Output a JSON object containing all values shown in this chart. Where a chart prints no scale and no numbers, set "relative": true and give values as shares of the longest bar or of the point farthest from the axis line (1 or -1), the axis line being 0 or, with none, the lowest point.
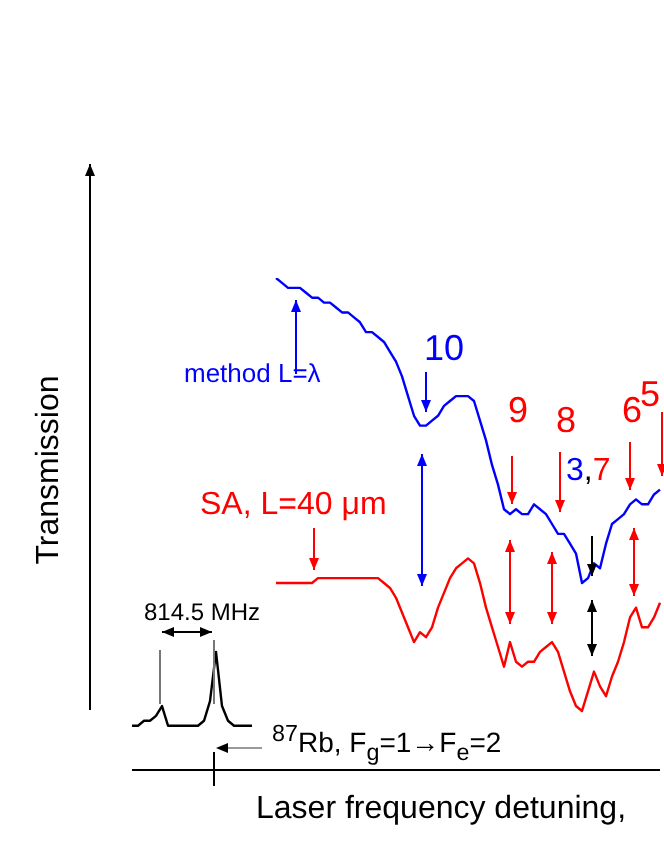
{
  "chart_data": {
    "type": "line",
    "relative": true,
    "xlabel": "Laser frequency detuning,",
    "ylabel": "Transmission",
    "legend": false,
    "grid": false,
    "categories": [
      null,
      null,
      null,
      null,
      null,
      null,
      null,
      null,
      null,
      null,
      null,
      null,
      null,
      null,
      null,
      null,
      null,
      null,
      null,
      null,
      null,
      null,
      null,
      null,
      null,
      null,
      null,
      null,
      null,
      null,
      null,
      null,
      null,
      null,
      null,
      null,
      null,
      null,
      null,
      null,
      null,
      null,
      null,
      null,
      null,
      null,
      null,
      null,
      null,
      null,
      null,
      null,
      null,
      null,
      null,
      null,
      null,
      null,
      null,
      null,
      null,
      null,
      null,
      null,
      null,
      null,
      null,
      null,
      null,
      null,
      null,
      null,
      null,
      null,
      null,
      null,
      null,
      null,
      null,
      null,
      null,
      null,
      null,
      null,
      null,
      null,
      null,
      null,
      null
    ],
    "series": [
      {
        "color": "#0000ff",
        "values": [
          null,
          null,
          null,
          null,
          null,
          null,
          null,
          null,
          null,
          null,
          null,
          null,
          null,
          null,
          null,
          null,
          null,
          null,
          null,
          null,
          null,
          null,
          null,
          null,
          1.0,
          0.99,
          0.98,
          0.98,
          0.98,
          0.97,
          0.96,
          0.96,
          0.95,
          0.95,
          0.94,
          0.93,
          0.93,
          0.92,
          0.91,
          0.89,
          0.89,
          0.88,
          0.87,
          0.85,
          0.83,
          0.8,
          0.76,
          0.72,
          0.7,
          0.7,
          0.71,
          0.72,
          0.74,
          0.75,
          0.76,
          0.76,
          0.76,
          0.75,
          0.71,
          0.67,
          0.62,
          0.58,
          0.53,
          0.52,
          0.53,
          0.52,
          0.52,
          0.54,
          0.53,
          0.52,
          0.5,
          0.48,
          0.48,
          0.46,
          0.44,
          0.38,
          0.39,
          0.42,
          0.41,
          0.46,
          0.5,
          0.51,
          0.52,
          0.54,
          0.55,
          0.54,
          0.54,
          0.56,
          0.57
        ]
      },
      {
        "color": "#ff0000",
        "values": [
          null,
          null,
          null,
          null,
          null,
          null,
          null,
          null,
          null,
          null,
          null,
          null,
          null,
          null,
          null,
          null,
          null,
          null,
          null,
          null,
          null,
          null,
          null,
          null,
          0.38,
          0.38,
          0.38,
          0.38,
          0.38,
          0.38,
          0.38,
          0.39,
          0.39,
          0.39,
          0.39,
          0.39,
          0.39,
          0.39,
          0.39,
          0.39,
          0.39,
          0.39,
          0.38,
          0.37,
          0.35,
          0.32,
          0.29,
          0.26,
          0.28,
          0.27,
          0.29,
          0.33,
          0.36,
          0.39,
          0.41,
          0.42,
          0.43,
          0.42,
          0.38,
          0.33,
          0.29,
          0.25,
          0.21,
          0.26,
          0.22,
          0.21,
          0.22,
          0.22,
          0.24,
          0.25,
          0.26,
          0.24,
          0.2,
          0.16,
          0.13,
          0.12,
          0.16,
          0.2,
          0.17,
          0.15,
          0.19,
          0.22,
          0.26,
          0.31,
          0.33,
          0.29,
          0.29,
          0.31,
          0.34
        ]
      },
      {
        "color": "#000000",
        "values": [
          0.09,
          0.09,
          0.1,
          0.1,
          0.11,
          0.13,
          0.09,
          0.09,
          0.09,
          0.09,
          0.09,
          0.09,
          0.1,
          0.14,
          0.24,
          0.13,
          0.1,
          0.09,
          0.09,
          0.09,
          0.09,
          null,
          null,
          null,
          null,
          null,
          null,
          null,
          null,
          null,
          null,
          null,
          null,
          null,
          null,
          null,
          null,
          null,
          null,
          null,
          null,
          null,
          null,
          null,
          null,
          null,
          null,
          null,
          null,
          null,
          null,
          null,
          null,
          null,
          null,
          null,
          null,
          null,
          null,
          null,
          null,
          null,
          null,
          null,
          null,
          null,
          null,
          null,
          null,
          null,
          null,
          null,
          null,
          null,
          null,
          null,
          null,
          null,
          null,
          null,
          null,
          null,
          null,
          null,
          null,
          null,
          null,
          null,
          null
        ]
      }
    ],
    "annotations": [
      "10",
      "9",
      "8",
      "3,7",
      "6",
      "5",
      "814.5 MHz",
      "$^{87}$Rb, F$_{g}$=1→F$_{e}$=2",
      "method L=λ",
      "SA, L=40 μm"
    ]
  }
}
